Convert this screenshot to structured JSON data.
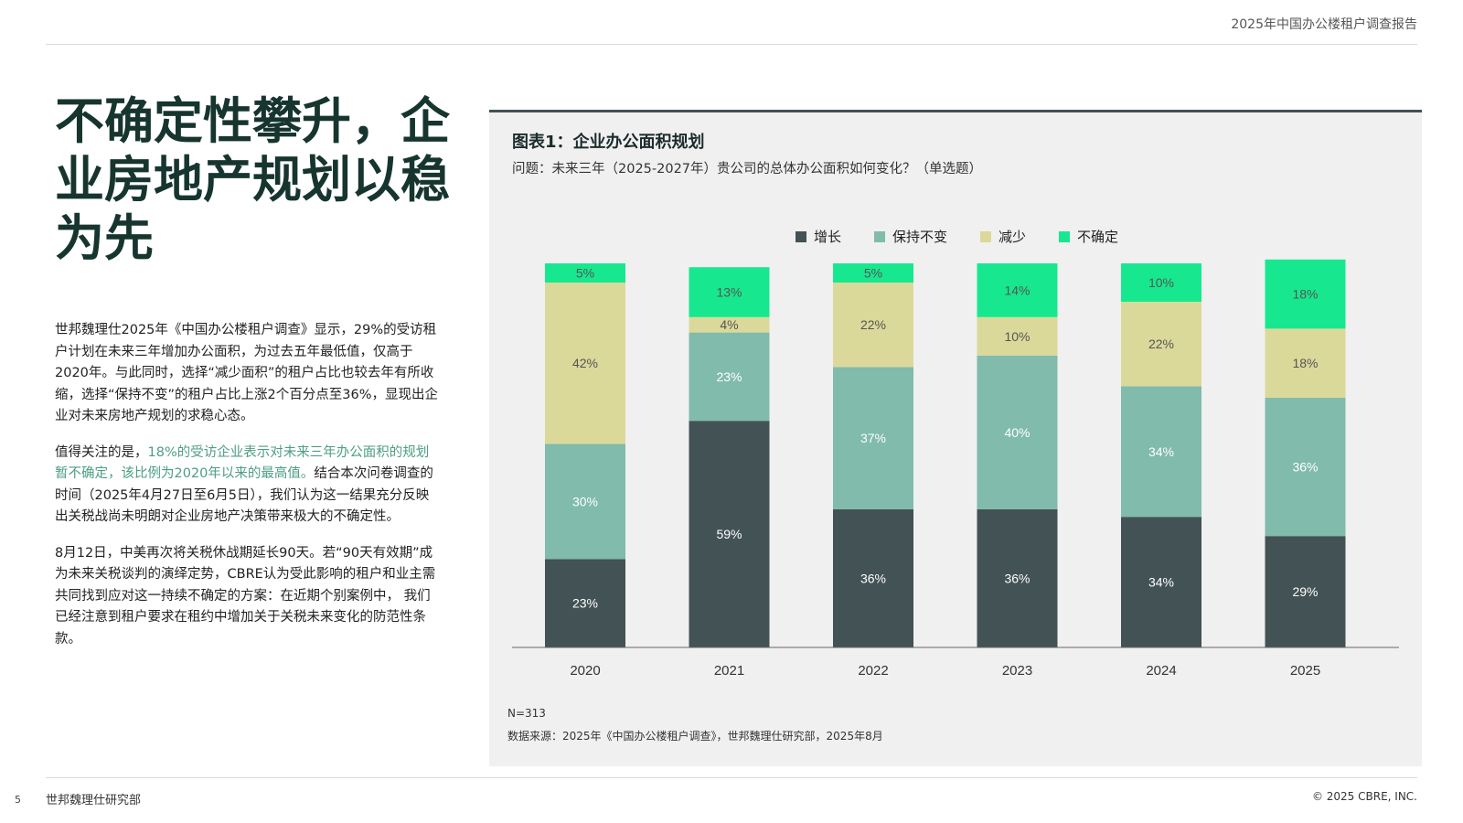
{
  "header": {
    "report_title": "2025年中国办公楼租户调查报告"
  },
  "headline": "不确定性攀升，企业房地产规划以稳为先",
  "body": {
    "p1": "世邦魏理仕2025年《中国办公楼租户调查》显示，29%的受访租户计划在未来三年增加办公面积，为过去五年最低值，仅高于2020年。与此同时，选择“减少面积”的租户占比也较去年有所收缩，选择“保持不变”的租户占比上涨2个百分点至36%，显现出企业对未来房地产规划的求稳心态。",
    "p2_lead": "值得关注的是，",
    "p2_highlight": "18%的受访企业表示对未来三年办公面积的规划暂不确定，该比例为2020年以来的最高值。",
    "p2_rest": "结合本次问卷调查的时间（2025年4月27日至6月5日），我们认为这一结果充分反映出关税战尚未明朗对企业房地产决策带来极大的不确定性。",
    "p3": "8月12日，中美再次将关税休战期延长90天。若“90天有效期”成为未来关税谈判的演绎定势，CBRE认为受此影响的租户和业主需共同找到应对这一持续不确定的方案：在近期个别案例中， 我们已经注意到租户要求在租约中增加关于关税未来变化的防范性条款。"
  },
  "figure": {
    "title": "图表1：企业办公面积规划",
    "question": "问题：未来三年（2025-2027年）贵公司的总体办公面积如何变化？（单选题）",
    "n_note": "N=313",
    "source": "数据来源：2025年《中国办公楼租户调查》，世邦魏理仕研究部，2025年8月"
  },
  "chart_data": {
    "type": "bar",
    "stacked": true,
    "categories": [
      "2020",
      "2021",
      "2022",
      "2023",
      "2024",
      "2025"
    ],
    "series": [
      {
        "name": "增长",
        "color": "#435254",
        "values": [
          23,
          59,
          36,
          36,
          34,
          29
        ]
      },
      {
        "name": "保持不变",
        "color": "#80bbab",
        "values": [
          30,
          23,
          37,
          40,
          34,
          36
        ]
      },
      {
        "name": "减少",
        "color": "#dbd99a",
        "values": [
          42,
          4,
          22,
          10,
          22,
          18
        ]
      },
      {
        "name": "不确定",
        "color": "#17e88f",
        "values": [
          5,
          13,
          5,
          14,
          10,
          18
        ]
      }
    ],
    "value_suffix": "%",
    "ylim": [
      0,
      100
    ],
    "grid": false,
    "legend": "top"
  },
  "footer": {
    "page_number": "5",
    "left": "世邦魏理仕研究部",
    "right": "© 2025 CBRE, INC."
  }
}
